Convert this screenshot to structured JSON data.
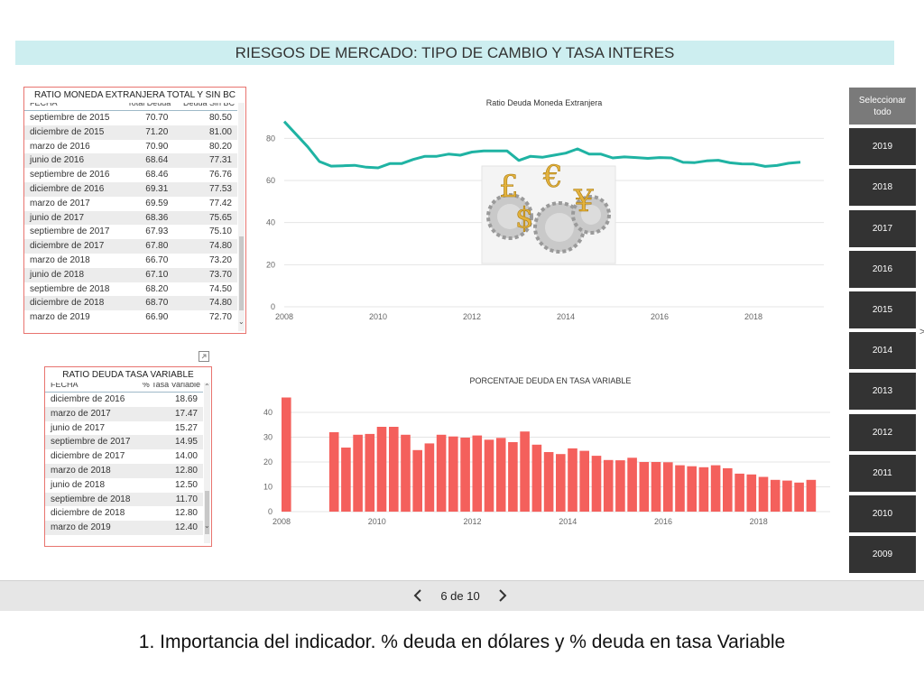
{
  "title": "RIESGOS DE MERCADO: TIPO DE CAMBIO Y TASA INTERES",
  "table_fx": {
    "title": "RATIO MONEDA EXTRANJERA TOTAL Y SIN BC",
    "columns": [
      "FECHA",
      "Total Deuda",
      "Deuda Sin BC"
    ],
    "rows": [
      [
        "septiembre de 2015",
        "70.70",
        "80.50"
      ],
      [
        "diciembre de 2015",
        "71.20",
        "81.00"
      ],
      [
        "marzo de 2016",
        "70.90",
        "80.20"
      ],
      [
        "junio de 2016",
        "68.64",
        "77.31"
      ],
      [
        "septiembre de 2016",
        "68.46",
        "76.76"
      ],
      [
        "diciembre de 2016",
        "69.31",
        "77.53"
      ],
      [
        "marzo de 2017",
        "69.59",
        "77.42"
      ],
      [
        "junio de 2017",
        "68.36",
        "75.65"
      ],
      [
        "septiembre de 2017",
        "67.93",
        "75.10"
      ],
      [
        "diciembre de 2017",
        "67.80",
        "74.80"
      ],
      [
        "marzo de 2018",
        "66.70",
        "73.20"
      ],
      [
        "junio de 2018",
        "67.10",
        "73.70"
      ],
      [
        "septiembre de 2018",
        "68.20",
        "74.50"
      ],
      [
        "diciembre de 2018",
        "68.70",
        "74.80"
      ],
      [
        "marzo de 2019",
        "66.90",
        "72.70"
      ]
    ]
  },
  "table_var": {
    "title": "RATIO DEUDA TASA VARIABLE",
    "columns": [
      "FECHA",
      "% Tasa Variable"
    ],
    "rows": [
      [
        "diciembre de 2016",
        "18.69"
      ],
      [
        "marzo de 2017",
        "17.47"
      ],
      [
        "junio de 2017",
        "15.27"
      ],
      [
        "septiembre de 2017",
        "14.95"
      ],
      [
        "diciembre de 2017",
        "14.00"
      ],
      [
        "marzo de 2018",
        "12.80"
      ],
      [
        "junio de 2018",
        "12.50"
      ],
      [
        "septiembre de 2018",
        "11.70"
      ],
      [
        "diciembre de 2018",
        "12.80"
      ],
      [
        "marzo de 2019",
        "12.40"
      ]
    ]
  },
  "chart_data": [
    {
      "type": "line",
      "title": "Ratio Deuda Moneda Extranjera",
      "xlabel": "",
      "ylabel": "",
      "xlim": [
        2008,
        2019.5
      ],
      "ylim": [
        0,
        90
      ],
      "x_ticks": [
        "2008",
        "2010",
        "2012",
        "2014",
        "2016",
        "2018"
      ],
      "y_ticks": [
        "0",
        "20",
        "40",
        "60",
        "80"
      ],
      "grid": true,
      "color": "#1fb3a3",
      "x": [
        2008.0,
        2008.25,
        2008.5,
        2008.75,
        2009.0,
        2009.25,
        2009.5,
        2009.75,
        2010.0,
        2010.25,
        2010.5,
        2010.75,
        2011.0,
        2011.25,
        2011.5,
        2011.75,
        2012.0,
        2012.25,
        2012.5,
        2012.75,
        2013.0,
        2013.25,
        2013.5,
        2013.75,
        2014.0,
        2014.25,
        2014.5,
        2014.75,
        2015.0,
        2015.25,
        2015.5,
        2015.75,
        2016.0,
        2016.25,
        2016.5,
        2016.75,
        2017.0,
        2017.25,
        2017.5,
        2017.75,
        2018.0,
        2018.25,
        2018.5,
        2018.75,
        2019.0
      ],
      "values": [
        88.0,
        82.0,
        76.0,
        69.0,
        66.8,
        67.0,
        67.2,
        66.3,
        66.0,
        68.0,
        68.0,
        70.0,
        71.5,
        71.5,
        72.5,
        72.0,
        73.5,
        74.0,
        74.0,
        74.0,
        69.5,
        71.5,
        71.0,
        72.0,
        73.0,
        75.0,
        72.5,
        72.5,
        70.7,
        71.2,
        70.9,
        70.5,
        70.9,
        70.7,
        68.6,
        68.5,
        69.3,
        69.6,
        68.4,
        67.9,
        67.8,
        66.7,
        67.1,
        68.2,
        68.7
      ]
    },
    {
      "type": "bar",
      "title": "PORCENTAJE DEUDA EN TASA VARIABLE",
      "xlabel": "",
      "ylabel": "",
      "xlim": [
        2008,
        2019.5
      ],
      "ylim": [
        0,
        48
      ],
      "x_ticks": [
        "2008",
        "2010",
        "2012",
        "2014",
        "2016",
        "2018"
      ],
      "y_ticks": [
        "0",
        "10",
        "20",
        "30",
        "40"
      ],
      "grid": true,
      "color": "#f4605c",
      "x": [
        2008.0,
        2009.0,
        2009.25,
        2009.5,
        2009.75,
        2010.0,
        2010.25,
        2010.5,
        2010.75,
        2011.0,
        2011.25,
        2011.5,
        2011.75,
        2012.0,
        2012.25,
        2012.5,
        2012.75,
        2013.0,
        2013.25,
        2013.5,
        2013.75,
        2014.0,
        2014.25,
        2014.5,
        2014.75,
        2015.0,
        2015.25,
        2015.5,
        2015.75,
        2016.0,
        2016.25,
        2016.5,
        2016.75,
        2017.0,
        2017.25,
        2017.5,
        2017.75,
        2018.0,
        2018.25,
        2018.5,
        2018.75,
        2019.0
      ],
      "values": [
        46.0,
        32.0,
        25.8,
        31.0,
        31.3,
        34.2,
        34.2,
        31.0,
        24.8,
        27.5,
        31.0,
        30.3,
        29.8,
        30.7,
        29.0,
        29.7,
        28.0,
        32.3,
        27.0,
        24.0,
        23.2,
        25.5,
        24.5,
        22.5,
        20.8,
        20.7,
        21.7,
        20.0,
        20.0,
        19.9,
        18.7,
        18.3,
        17.9,
        18.7,
        17.5,
        15.3,
        15.0,
        14.0,
        12.8,
        12.5,
        11.7,
        12.8
      ]
    }
  ],
  "slicer": {
    "items": [
      "Seleccionar todo",
      "2019",
      "2018",
      "2017",
      "2016",
      "2015",
      "2014",
      "2013",
      "2012",
      "2011",
      "2010",
      "2009"
    ],
    "selected_index": 0,
    "colors": {
      "selected": "#7a7a7a",
      "normal": "#333333"
    }
  },
  "nav": {
    "page_label": "6 de 10"
  },
  "caption": "1.   Importancia del indicador.  % deuda en dólares y % deuda en tasa Variable",
  "right_edge_glyph": ">",
  "image_icons": [
    "pound-sign-icon",
    "euro-sign-icon",
    "dollar-sign-icon",
    "yen-sign-icon",
    "gear-icon"
  ]
}
